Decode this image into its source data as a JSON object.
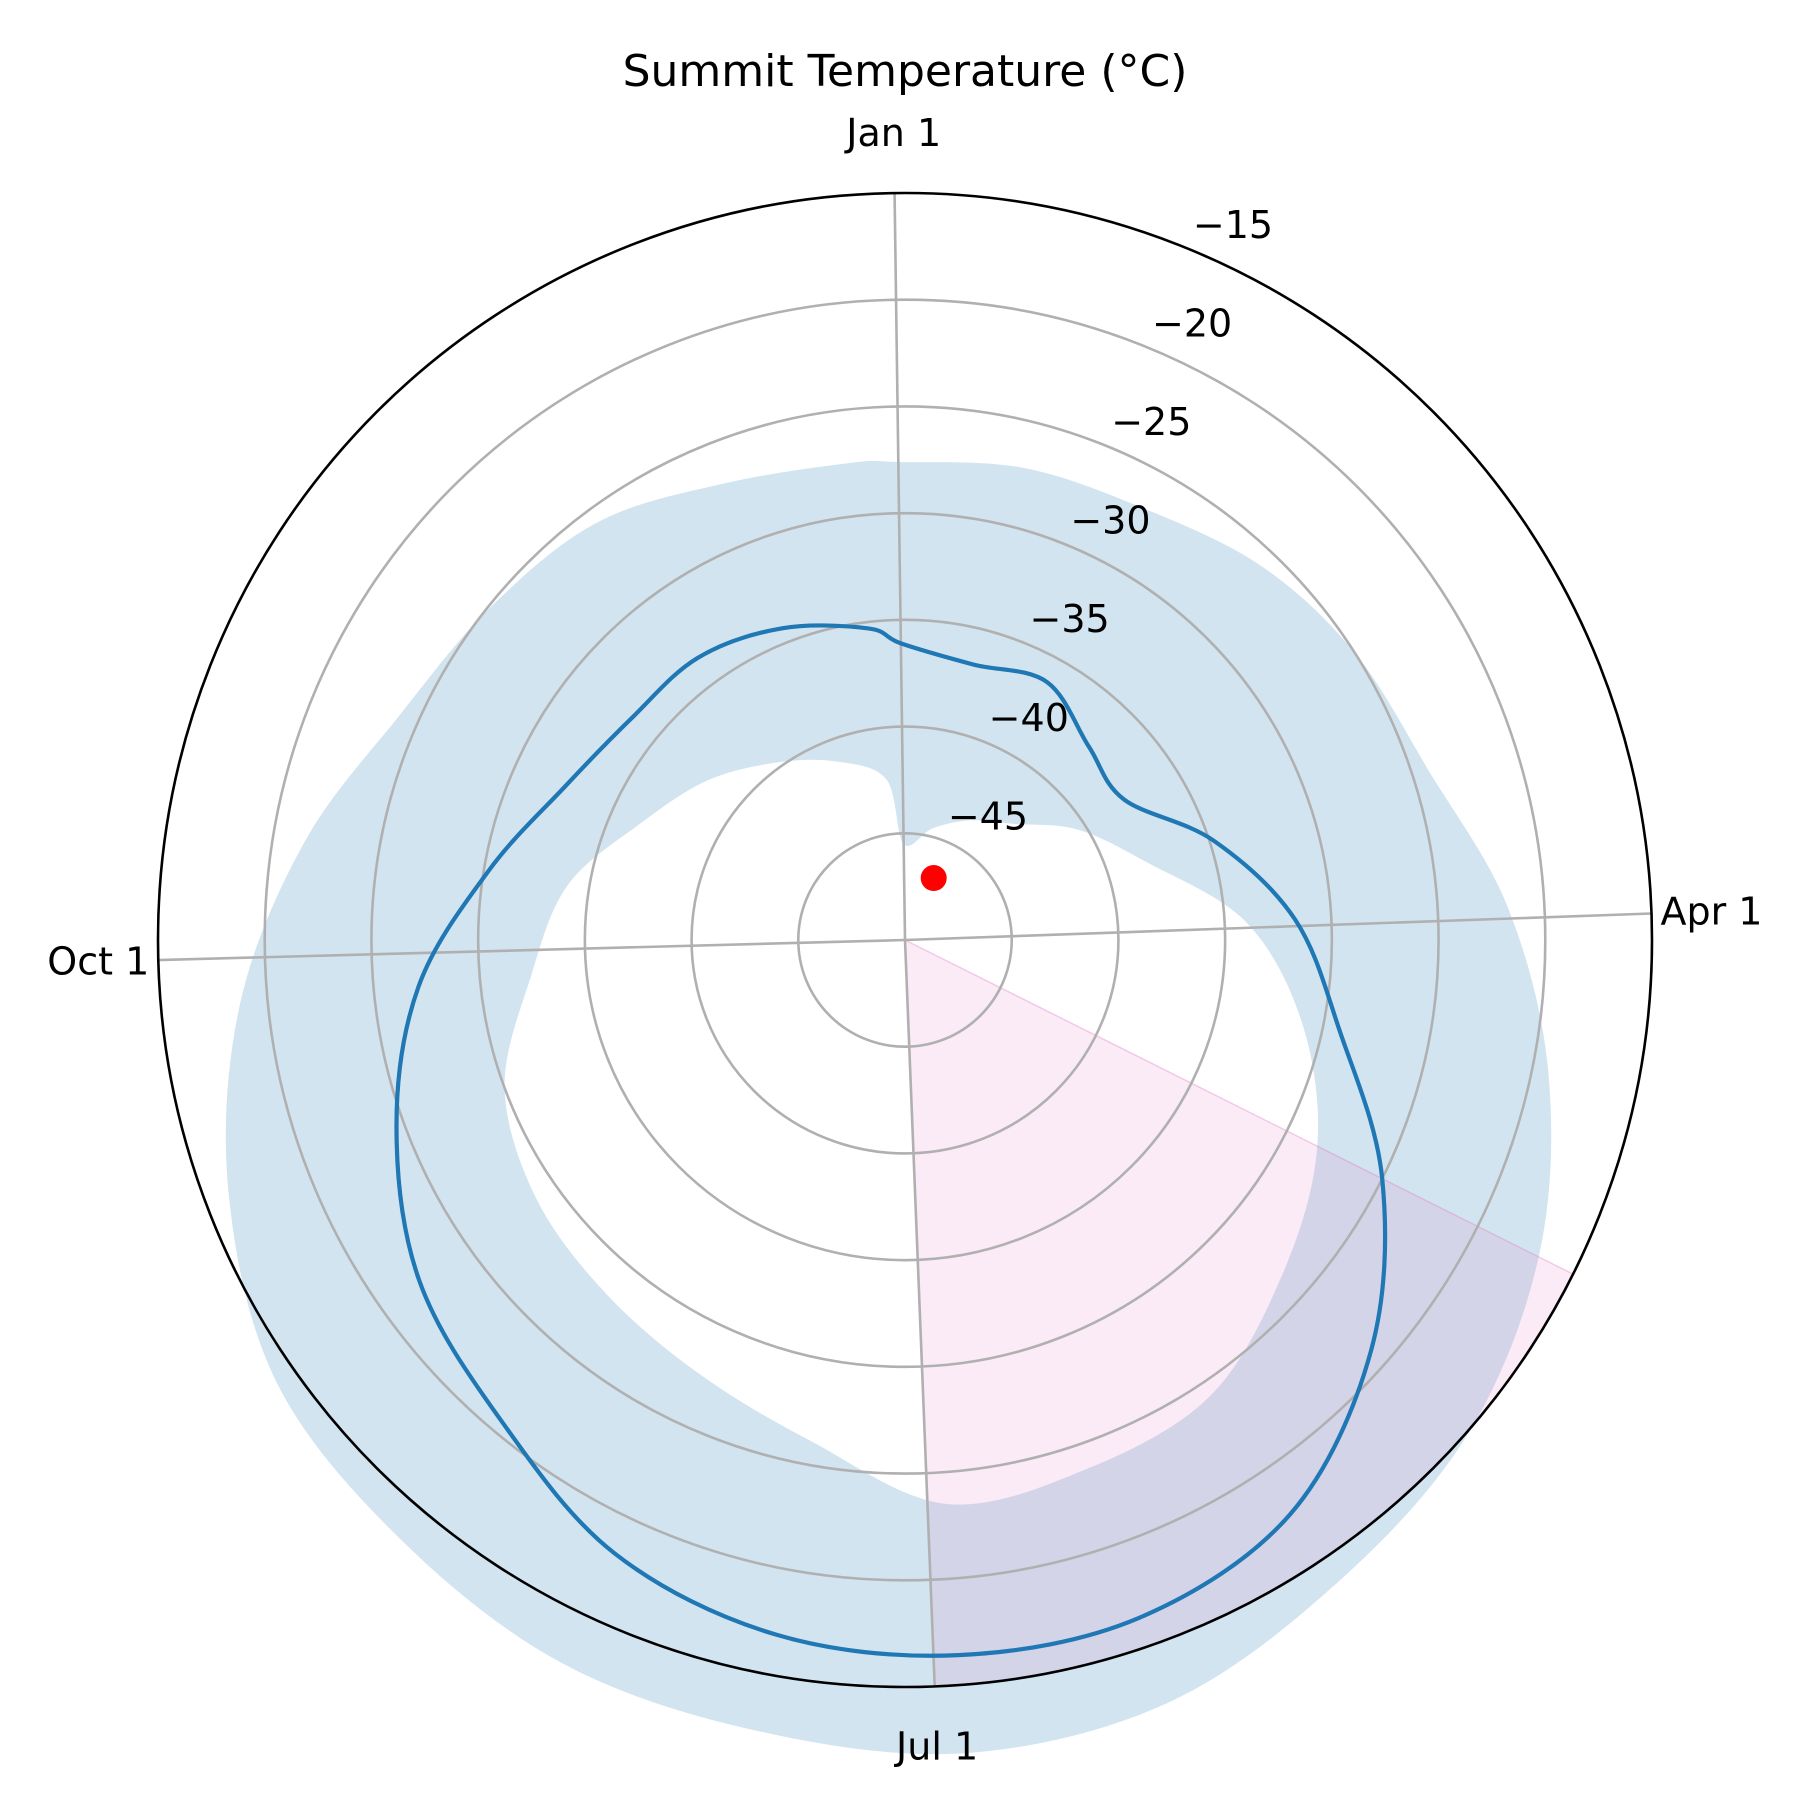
{
  "chart_data": {
    "type": "line",
    "projection": "polar",
    "title": "Summit Temperature (°C)",
    "theta_direction": "clockwise, Jan 1 at top",
    "theta_ticks": [
      "Jan 1",
      "Apr 1",
      "Jul 1",
      "Oct 1"
    ],
    "r_ticks": [
      "−45",
      "−40",
      "−35",
      "−30",
      "−25",
      "−20",
      "−15"
    ],
    "r_tick_values": [
      -45,
      -40,
      -35,
      -30,
      -25,
      -20,
      -15
    ],
    "r_range": [
      -50,
      -15
    ],
    "grid": true,
    "colors": {
      "mean_line": "#1f77b4",
      "range_band": "#1f77b4",
      "range_band_opacity": 0.2,
      "wedge": "#e377c2",
      "wedge_opacity": 0.15,
      "current_marker": "#ff0000"
    },
    "x_unit": "month-day",
    "series": [
      {
        "kind": "line",
        "x": [
          "Jan 1",
          "Jan 16",
          "Jan 31",
          "Feb 15",
          "Mar 1",
          "Mar 16",
          "Mar 31",
          "Apr 15",
          "Apr 30",
          "May 15",
          "May 30",
          "Jun 14",
          "Jun 29",
          "Jul 14",
          "Jul 29",
          "Aug 13",
          "Aug 28",
          "Sep 12",
          "Sep 27",
          "Oct 12",
          "Oct 27",
          "Nov 11",
          "Nov 26",
          "Dec 11",
          "Dec 26"
        ],
        "y": [
          -36.1,
          -36.7,
          -36.2,
          -37.5,
          -37.8,
          -34.8,
          -31.7,
          -29.2,
          -25.0,
          -20.9,
          -17.6,
          -16.4,
          -16.4,
          -16.9,
          -18.2,
          -20.6,
          -22.2,
          -24.6,
          -27.1,
          -30.2,
          -32.5,
          -33.5,
          -33.6,
          -34.3,
          -35.3
        ]
      },
      {
        "kind": "band",
        "x": [
          "Jan 1",
          "Jan 16",
          "Jan 31",
          "Feb 15",
          "Mar 1",
          "Mar 16",
          "Mar 31",
          "Apr 15",
          "Apr 30",
          "May 15",
          "May 30",
          "Jun 14",
          "Jun 29",
          "Jul 14",
          "Jul 29",
          "Aug 13",
          "Aug 28",
          "Sep 12",
          "Sep 27",
          "Oct 12",
          "Oct 27",
          "Nov 11",
          "Nov 26",
          "Dec 11",
          "Dec 26"
        ],
        "low": [
          -45.5,
          -44.6,
          -43.6,
          -42.5,
          -40.4,
          -38.1,
          -34.0,
          -31.0,
          -28.4,
          -26.4,
          -24.3,
          -23.8,
          -23.5,
          -26.1,
          -27.5,
          -28.3,
          -28.9,
          -30.0,
          -32.4,
          -34.0,
          -36.5,
          -38.1,
          -39.7,
          -41.0,
          -42.4
        ],
        "high": [
          -27.6,
          -27.2,
          -26.9,
          -25.8,
          -25.0,
          -24.2,
          -21.7,
          -19.2,
          -16.8,
          -14.9,
          -13.7,
          -12.2,
          -11.8,
          -12.3,
          -12.5,
          -13.3,
          -14.0,
          -16.2,
          -18.7,
          -21.5,
          -24.1,
          -25.1,
          -25.7,
          -27.0,
          -27.5
        ]
      },
      {
        "kind": "wedge",
        "x_start": "Apr 30",
        "x_end": "Jul 1",
        "r_range": [
          -50,
          -15
        ]
      },
      {
        "kind": "point",
        "x": "Jan 27",
        "y": -46.8
      }
    ]
  }
}
